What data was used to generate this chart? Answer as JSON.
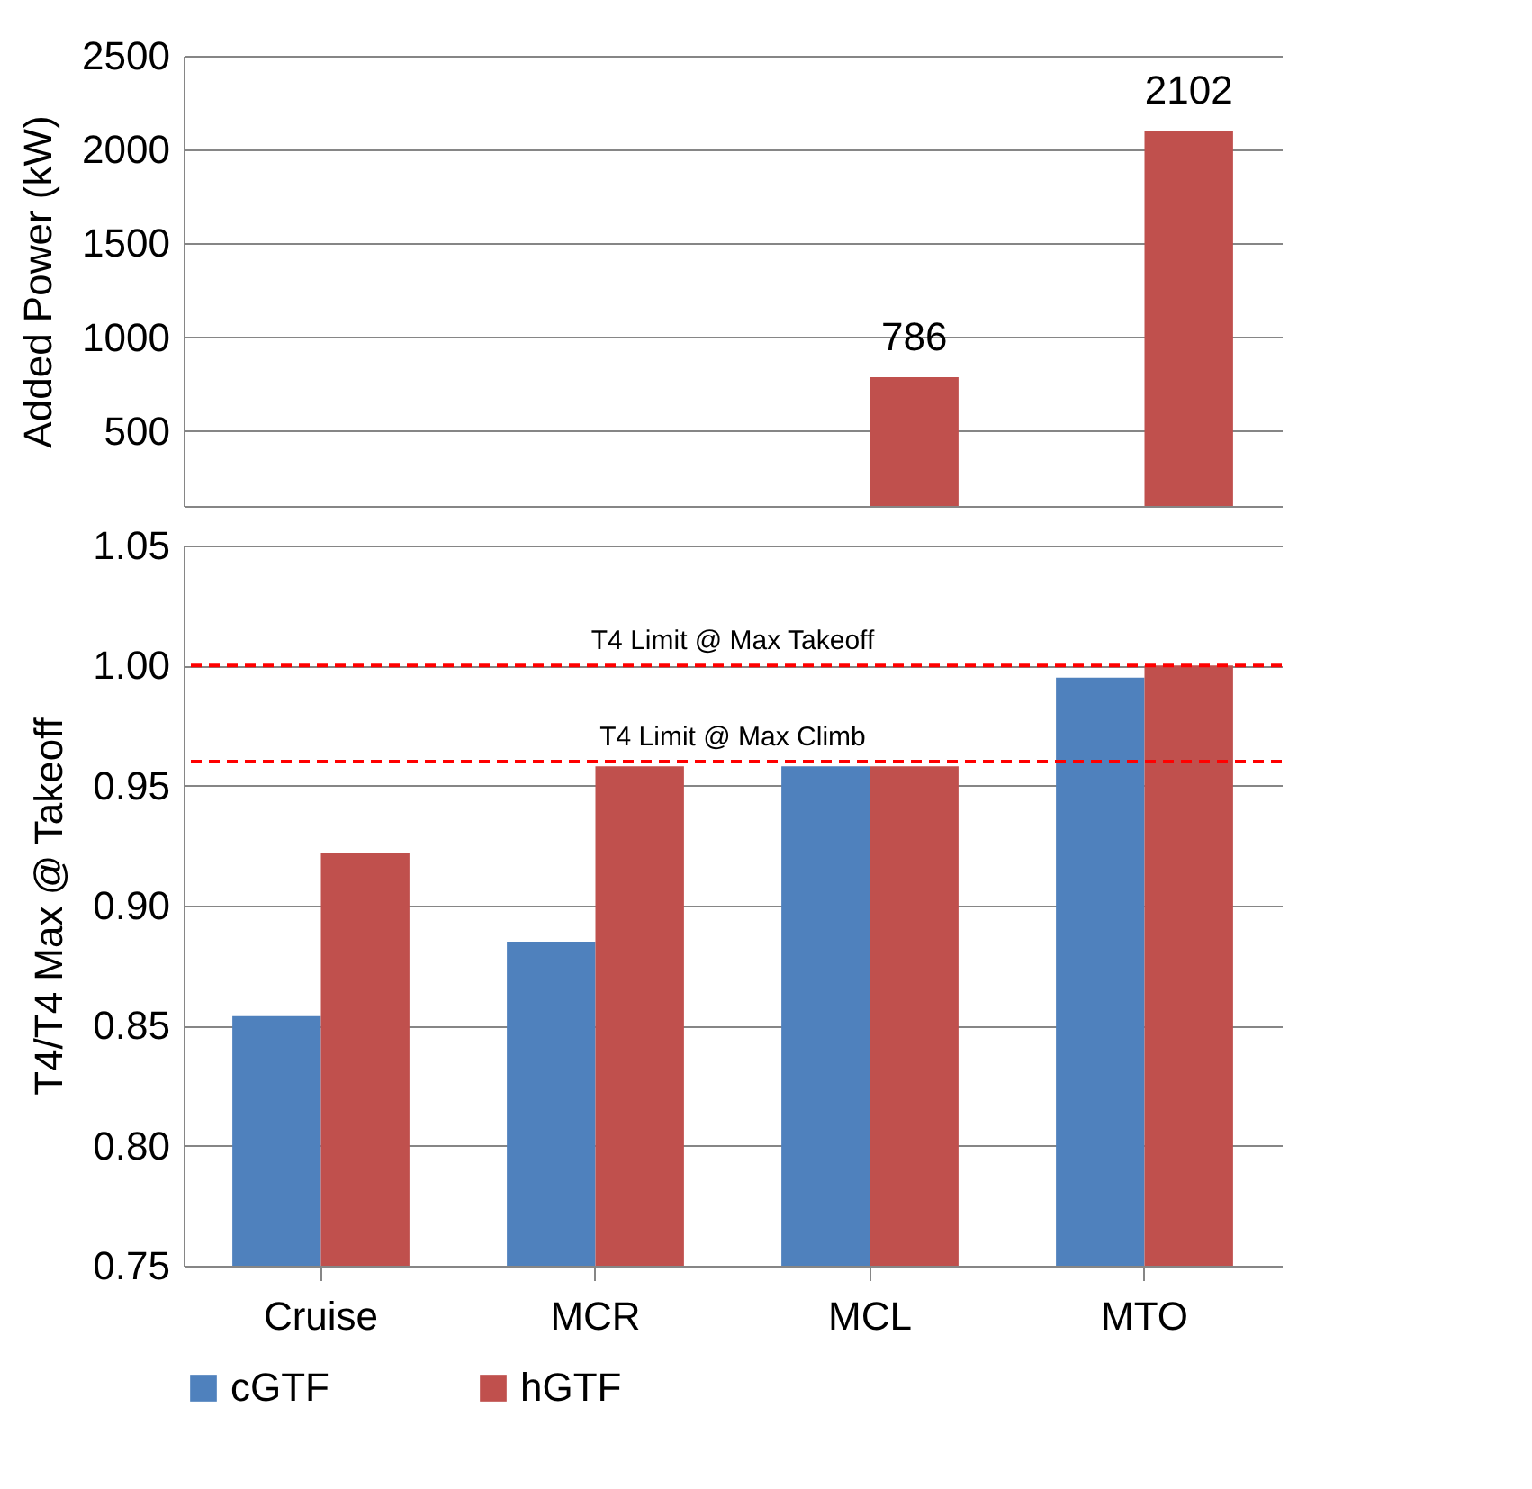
{
  "chart_data": [
    {
      "type": "bar",
      "ylabel": "Added  Power (kW)",
      "categories": [
        null,
        null,
        null,
        null
      ],
      "ylim": [
        100,
        2500
      ],
      "yticks": [
        500,
        1000,
        1500,
        2000,
        2500
      ],
      "grid": "y",
      "tick_labels": "y",
      "data_labels": true,
      "series": [
        {
          "color": "#4f81bd",
          "values": [
            null,
            null,
            null,
            null
          ]
        },
        {
          "color": "#c0504d",
          "values": [
            null,
            null,
            786,
            2102
          ]
        }
      ]
    },
    {
      "type": "bar",
      "ylabel": "T4/T4 Max @ Takeoff",
      "categories": [
        "Cruise",
        "MCR",
        "MCL",
        "MTO"
      ],
      "ylim": [
        0.75,
        1.05
      ],
      "yticks": [
        {
          "value": 0.75,
          "label": "0.75"
        },
        {
          "value": 0.8,
          "label": "0.80"
        },
        {
          "value": 0.85,
          "label": "0.85"
        },
        {
          "value": 0.9,
          "label": "0.90"
        },
        {
          "value": 0.95,
          "label": "0.95"
        },
        {
          "value": 1.0,
          "label": "1.00"
        },
        {
          "value": 1.05,
          "label": "1.05"
        }
      ],
      "grid": "y",
      "legend": "bottom",
      "series": [
        {
          "name": "cGTF",
          "color": "#4f81bd",
          "values": [
            0.854,
            0.885,
            0.958,
            0.995
          ]
        },
        {
          "name": "hGTF",
          "color": "#c0504d",
          "values": [
            0.922,
            0.958,
            0.958,
            1.0
          ]
        }
      ],
      "ref_lines": [
        {
          "axis": "y",
          "value": 1.0,
          "label": "T4 Limit @ Max Takeoff",
          "color": "#ff0000",
          "line_style": "dashed"
        },
        {
          "axis": "y",
          "value": 0.96,
          "label": "T4 Limit @ Max Climb",
          "color": "#ff0000",
          "line_style": "dashed"
        }
      ]
    }
  ]
}
